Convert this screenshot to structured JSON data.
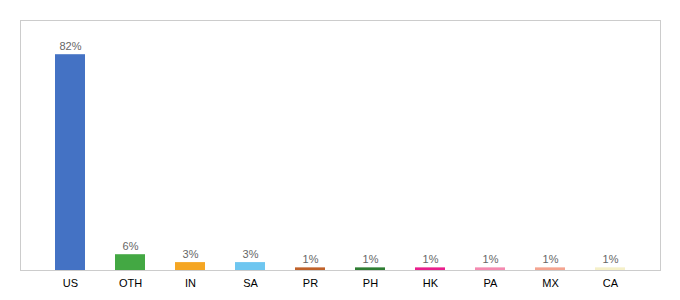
{
  "chart_data": {
    "type": "bar",
    "categories": [
      "US",
      "OTH",
      "IN",
      "SA",
      "PR",
      "PH",
      "HK",
      "PA",
      "MX",
      "CA"
    ],
    "values": [
      82,
      6,
      3,
      3,
      1,
      1,
      1,
      1,
      1,
      1
    ],
    "value_labels": [
      "82%",
      "6%",
      "3%",
      "3%",
      "1%",
      "1%",
      "1%",
      "1%",
      "1%",
      "1%"
    ],
    "colors": [
      "#4472C4",
      "#43A843",
      "#F5A623",
      "#6EC6F0",
      "#C0622B",
      "#2E7D32",
      "#E91E8C",
      "#F48AB0",
      "#F4A490",
      "#F5F0C8"
    ],
    "ylim": [
      0,
      95
    ],
    "data_labels": true,
    "tick_labels": "x",
    "grid": false
  }
}
